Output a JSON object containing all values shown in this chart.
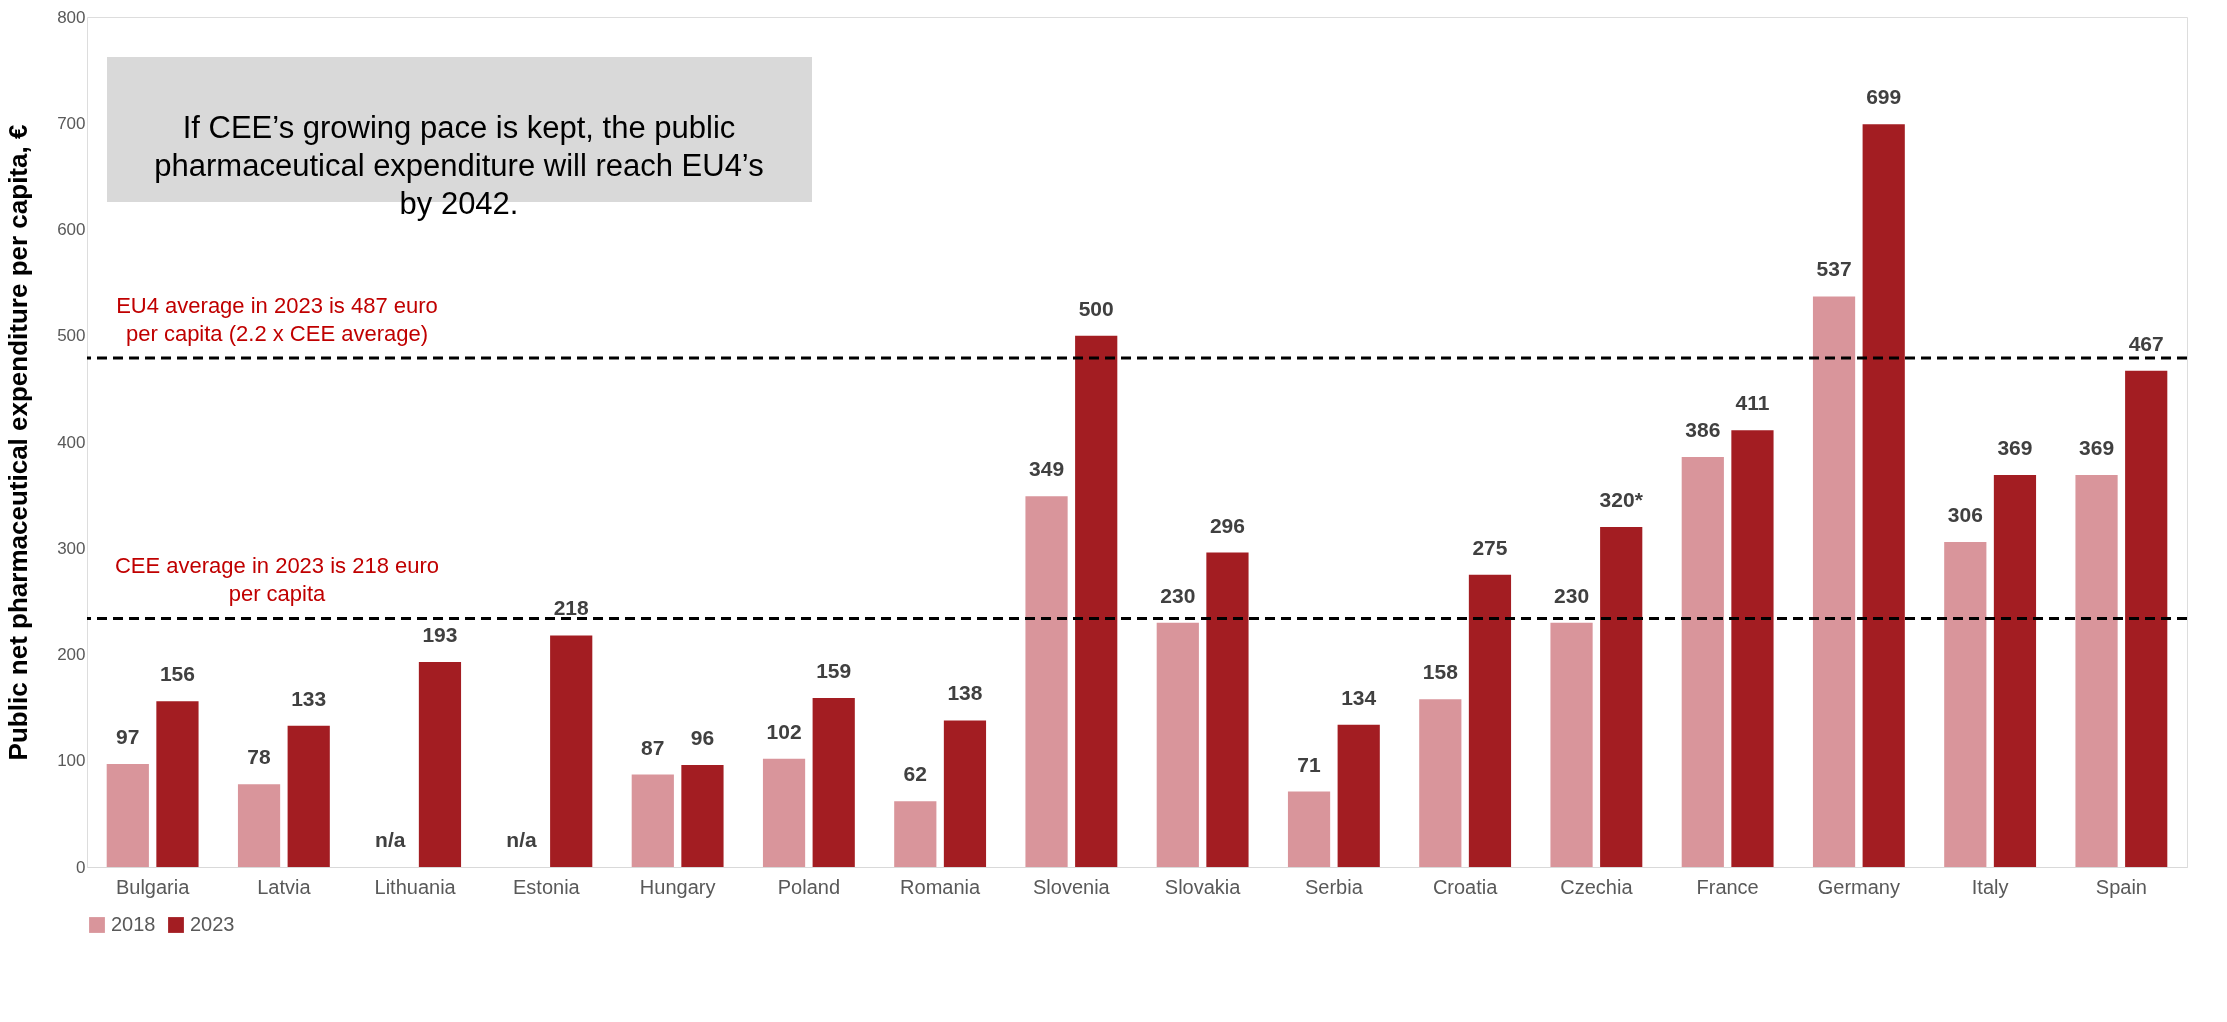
{
  "chart_data": {
    "type": "bar",
    "categories": [
      "Bulgaria",
      "Latvia",
      "Lithuania",
      "Estonia",
      "Hungary",
      "Poland",
      "Romania",
      "Slovenia",
      "Slovakia",
      "Serbia",
      "Croatia",
      "Czechia",
      "France",
      "Germany",
      "Italy",
      "Spain"
    ],
    "series": [
      {
        "name": "2018",
        "color": "#d9959b",
        "values": [
          97,
          78,
          null,
          null,
          87,
          102,
          62,
          349,
          230,
          71,
          158,
          230,
          386,
          537,
          306,
          369
        ],
        "value_labels": [
          "97",
          "78",
          "n/a",
          "n/a",
          "87",
          "102",
          "62",
          "349",
          "230",
          "71",
          "158",
          "230",
          "386",
          "537",
          "306",
          "369"
        ]
      },
      {
        "name": "2023",
        "color": "#a31d22",
        "values": [
          156,
          133,
          193,
          218,
          96,
          159,
          138,
          500,
          296,
          134,
          275,
          320,
          411,
          699,
          369,
          467
        ],
        "value_labels": [
          "156",
          "133",
          "193",
          "218",
          "96",
          "159",
          "138",
          "500",
          "296",
          "134",
          "275",
          "320*",
          "411",
          "699",
          "369",
          "467"
        ]
      }
    ],
    "ylabel": "Public net pharmaceutical expenditure per capita, €",
    "ylim": [
      0,
      800
    ],
    "yticks": [
      0,
      100,
      200,
      300,
      400,
      500,
      600,
      700,
      800
    ],
    "grid": false,
    "legend": "bottom",
    "ref_lines": [
      {
        "axis": "y",
        "value": 479,
        "label": "EU4 average in 2023 is 487 euro per capita (2.2 x CEE average)",
        "color": "#000000",
        "line_style": "dashed"
      },
      {
        "axis": "y",
        "value": 234,
        "label": "CEE average in 2023 is 218 euro per capita",
        "color": "#000000",
        "line_style": "dashed"
      }
    ],
    "annotations": [
      "If CEE’s growing pace is kept, the public pharmaceutical expenditure will reach EU4’s by 2042."
    ]
  }
}
